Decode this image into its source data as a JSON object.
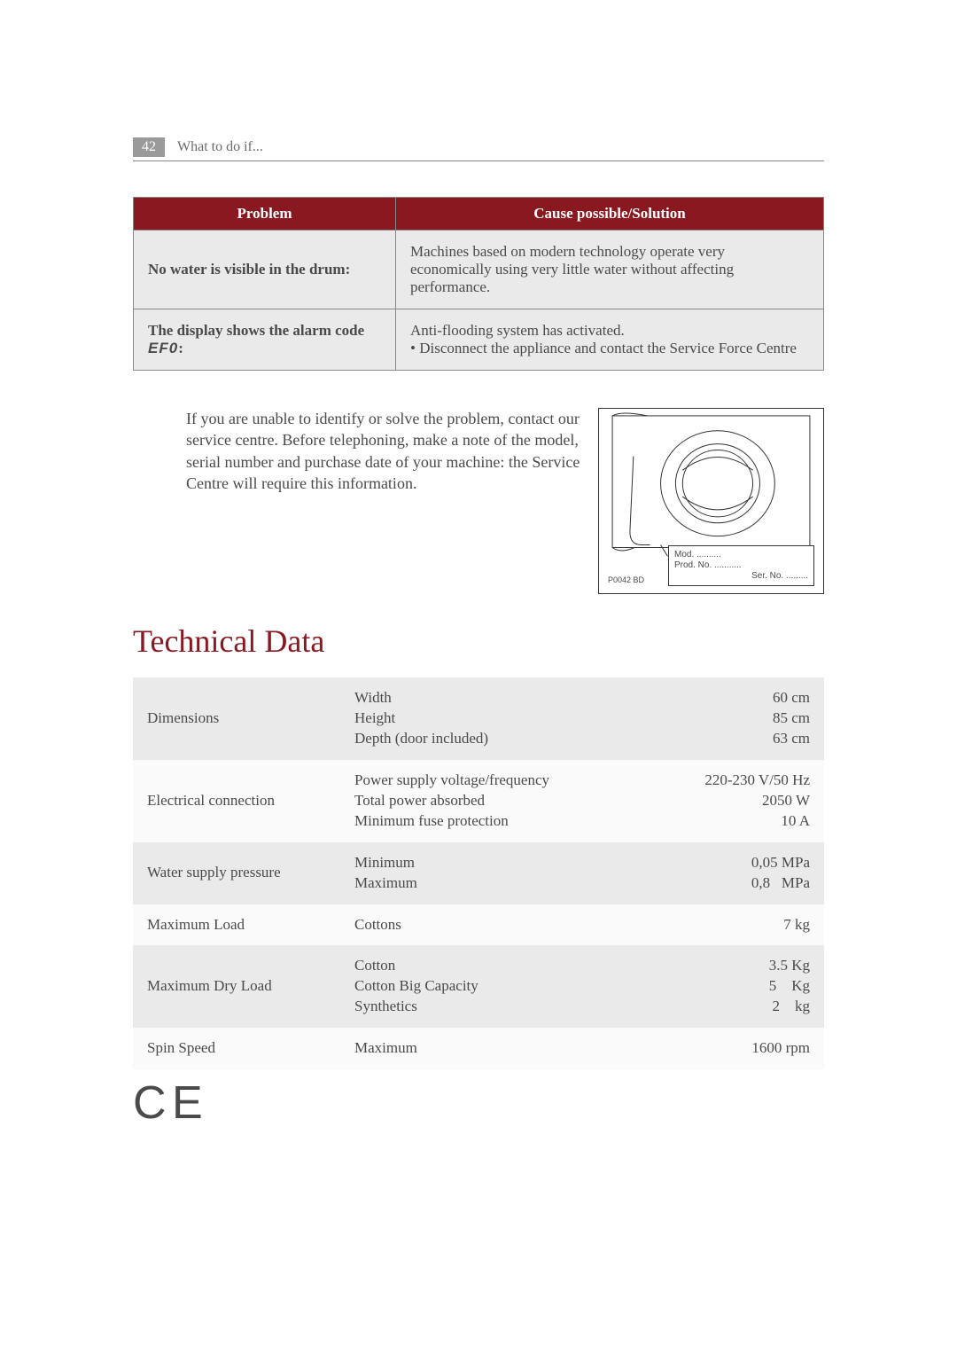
{
  "header": {
    "page_number": "42",
    "breadcrumb": "What to do if..."
  },
  "troubleshoot": {
    "columns": [
      "Problem",
      "Cause possible/Solution"
    ],
    "rows": [
      {
        "problem": "No water is visible in the drum:",
        "solution": "Machines based on modern technology operate very economically using very little water without affecting performance."
      },
      {
        "problem_prefix": "The display shows the alarm code ",
        "problem_code": "EF0",
        "problem_suffix": ":",
        "solution": "Anti-flooding system has activated.\n• Disconnect the appliance and contact the Service Force Centre"
      }
    ]
  },
  "contact_text": "If you are unable to identify or solve the problem, contact our service centre. Before telephoning, make a note of the model, serial number and purchase date of your machine: the Service Centre will require this information.",
  "diagram": {
    "mod": "Mod. ..........",
    "prod": "Prod. No. ...........",
    "ser": "Ser. No. .........",
    "code": "P0042 BD"
  },
  "section_title": "Technical Data",
  "tech": {
    "rows": [
      {
        "label": "Dimensions",
        "mid": "Width\nHeight\nDepth (door included)",
        "val": "60 cm\n85 cm\n63 cm"
      },
      {
        "label": "Electrical connection",
        "mid": "Power supply voltage/frequency\nTotal power absorbed\nMinimum fuse protection",
        "val": "220-230 V/50 Hz\n2050 W\n10 A"
      },
      {
        "label": "Water supply pressure",
        "mid": "Minimum\nMaximum",
        "val": "0,05 MPa\n0,8   MPa"
      },
      {
        "label": "Maximum Load",
        "mid": "Cottons",
        "val": "7 kg"
      },
      {
        "label": "Maximum Dry Load",
        "mid": "Cotton\nCotton Big Capacity\nSynthetics",
        "val": "3.5 Kg\n5    Kg\n2    kg"
      },
      {
        "label": "Spin Speed",
        "mid": "Maximum",
        "val": "1600 rpm"
      }
    ]
  },
  "ce": "C E",
  "colors": {
    "header_red": "#8a1820",
    "row_grey": "#eaeaea",
    "row_light": "#fafafa",
    "pagebox_grey": "#9a9a9a",
    "text": "#4a4a4a"
  }
}
